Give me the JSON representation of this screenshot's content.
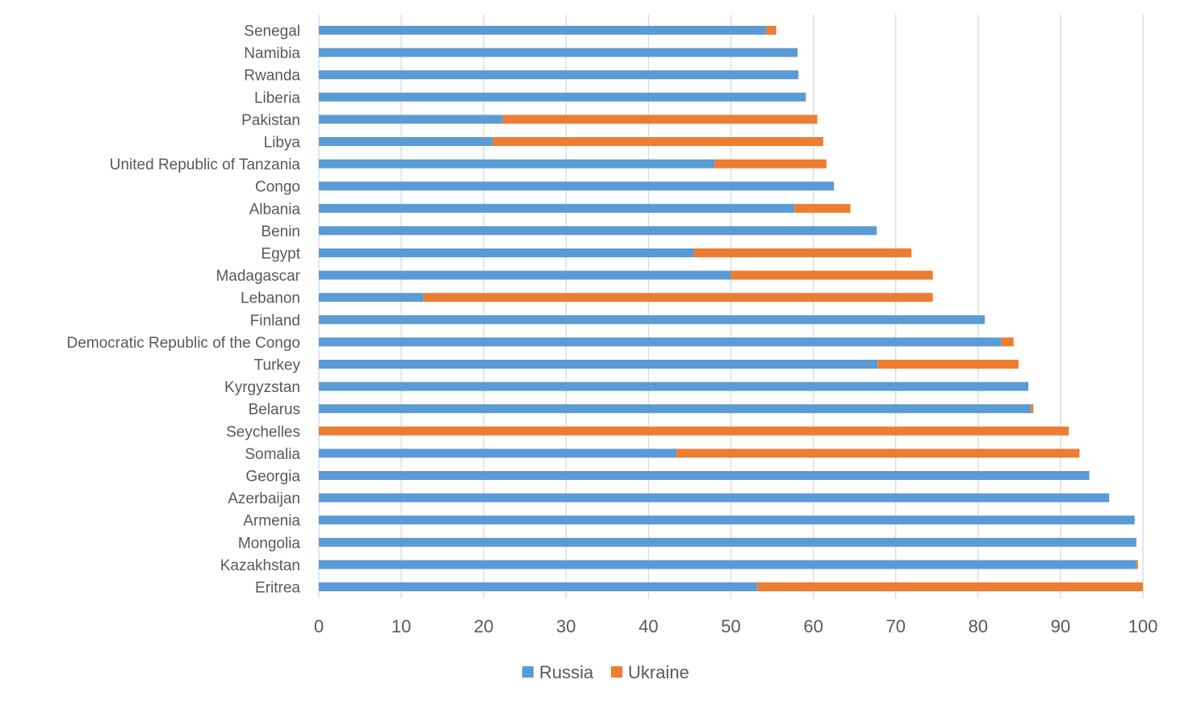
{
  "chart_data": {
    "type": "bar",
    "orientation": "horizontal",
    "stacked": true,
    "title": "",
    "xlabel": "",
    "ylabel": "",
    "xlim": [
      0,
      100
    ],
    "x_ticks": [
      "0",
      "10",
      "20",
      "30",
      "40",
      "50",
      "60",
      "70",
      "80",
      "90",
      "100"
    ],
    "grid": true,
    "legend_position": "bottom",
    "categories": [
      "Senegal",
      "Namibia",
      "Rwanda",
      "Liberia",
      "Pakistan",
      "Libya",
      "United Republic of Tanzania",
      "Congo",
      "Albania",
      "Benin",
      "Egypt",
      "Madagascar",
      "Lebanon",
      "Finland",
      "Democratic Republic of the Congo",
      "Turkey",
      "Kyrgyzstan",
      "Belarus",
      "Seychelles",
      "Somalia",
      "Georgia",
      "Azerbaijan",
      "Armenia",
      "Mongolia",
      "Kazakhstan",
      "Eritrea"
    ],
    "series": [
      {
        "name": "Russia",
        "color": "#5b9bd5",
        "values": [
          54.3,
          58.1,
          58.2,
          59.1,
          22.3,
          21.1,
          48.0,
          62.5,
          57.7,
          67.7,
          45.5,
          50.0,
          12.7,
          80.8,
          82.8,
          67.8,
          86.1,
          86.4,
          0.0,
          43.4,
          93.5,
          95.9,
          99.0,
          99.2,
          99.2,
          53.2
        ]
      },
      {
        "name": "Ukraine",
        "color": "#ed7d31",
        "values": [
          1.2,
          0.0,
          0.0,
          0.0,
          38.2,
          40.1,
          13.6,
          0.0,
          6.8,
          0.0,
          26.4,
          24.5,
          61.8,
          0.0,
          1.5,
          17.1,
          0.0,
          0.3,
          91.0,
          48.9,
          0.0,
          0.0,
          0.0,
          0.0,
          0.2,
          46.8
        ]
      }
    ]
  }
}
